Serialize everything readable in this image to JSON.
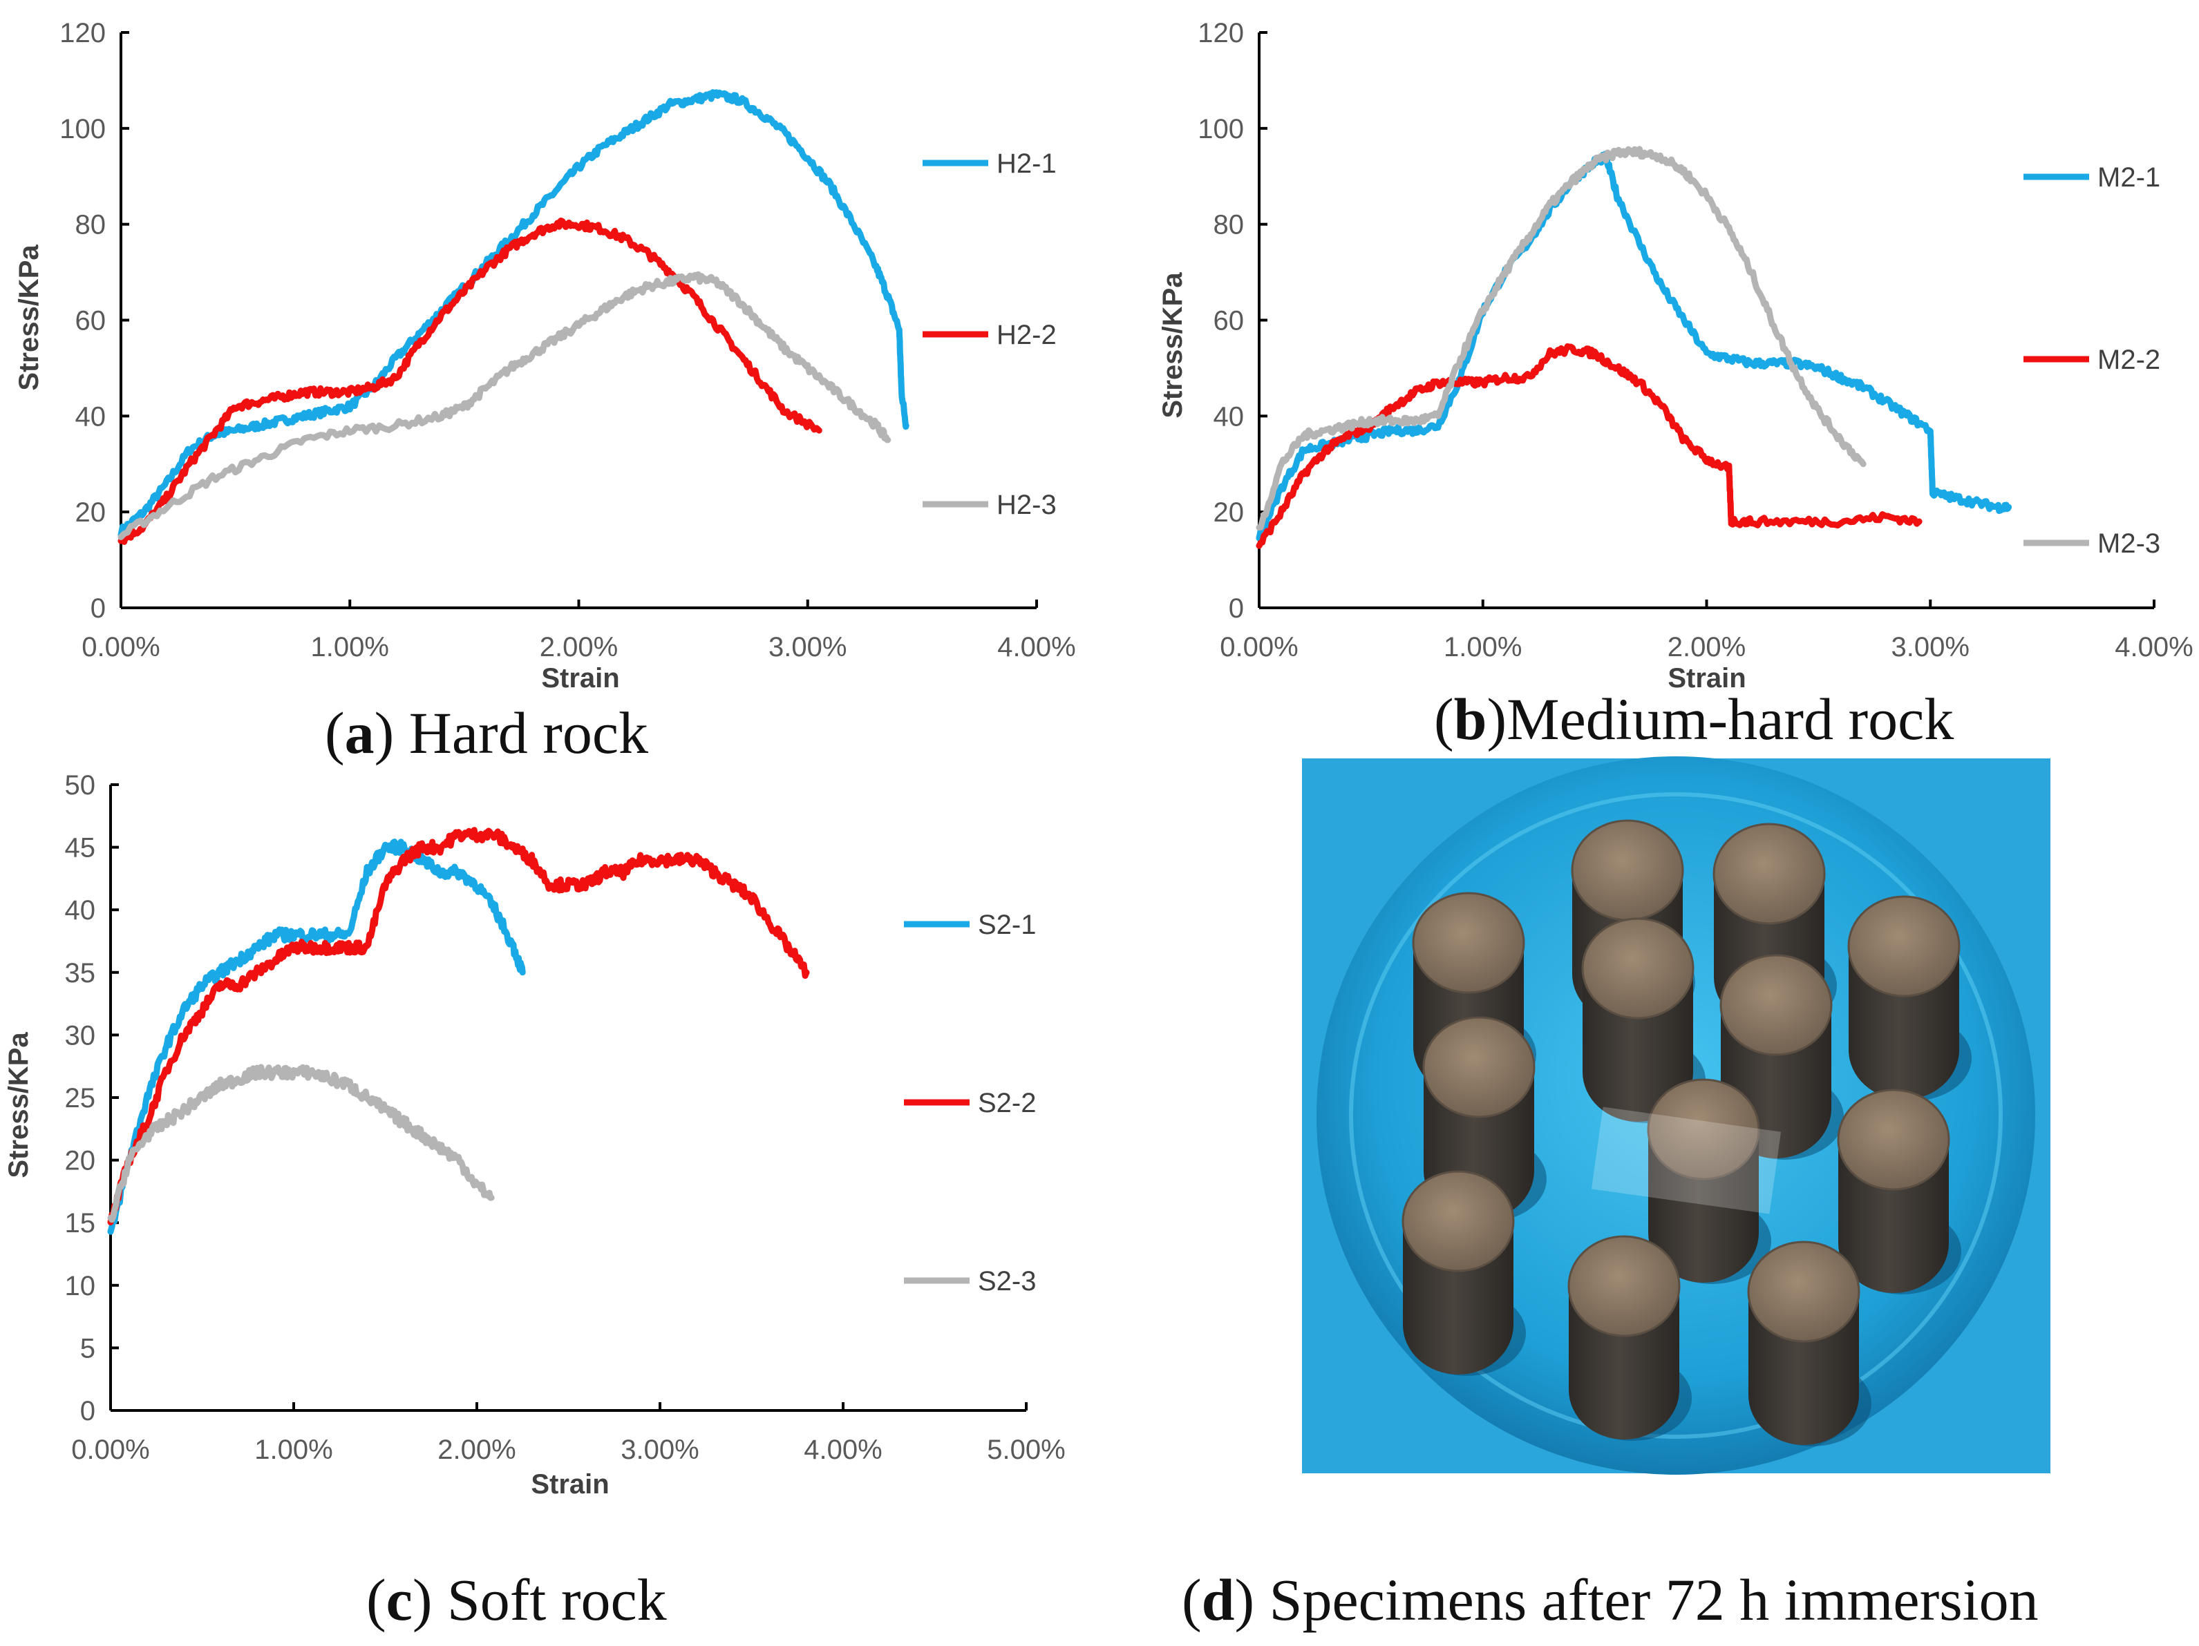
{
  "chart_data": [
    {
      "panel": "a",
      "type": "line",
      "caption_letter": "a",
      "caption_text": ") Hard rock",
      "caption_open": "(",
      "xlabel": "Strain",
      "ylabel": "Stress/KPa",
      "xlim": [
        0,
        0.04
      ],
      "ylim": [
        0,
        120
      ],
      "xticks": [
        0,
        0.01,
        0.02,
        0.03,
        0.04
      ],
      "xtick_labels": [
        "0.00%",
        "1.00%",
        "2.00%",
        "3.00%",
        "4.00%"
      ],
      "yticks": [
        0,
        20,
        40,
        60,
        80,
        100,
        120
      ],
      "ytick_labels": [
        "0",
        "20",
        "40",
        "60",
        "80",
        "100",
        "120"
      ],
      "legend_position": "right",
      "series": [
        {
          "name": "H2-1",
          "color": "#19a9e6",
          "x": [
            0,
            0.001,
            0.002,
            0.003,
            0.004,
            0.005,
            0.006,
            0.007,
            0.008,
            0.009,
            0.01,
            0.011,
            0.012,
            0.013,
            0.014,
            0.015,
            0.016,
            0.017,
            0.018,
            0.019,
            0.02,
            0.021,
            0.022,
            0.023,
            0.024,
            0.025,
            0.026,
            0.027,
            0.028,
            0.029,
            0.03,
            0.031,
            0.032,
            0.033,
            0.0335,
            0.034,
            0.0341,
            0.0343
          ],
          "y": [
            16,
            20,
            26,
            33,
            36,
            37,
            38,
            39,
            40,
            41,
            42,
            46,
            52,
            57,
            62,
            67,
            72,
            77,
            82,
            87,
            92,
            96,
            99,
            102,
            105,
            106,
            107,
            106,
            103,
            99,
            94,
            88,
            80,
            71,
            65,
            58,
            45,
            38
          ]
        },
        {
          "name": "H2-2",
          "color": "#f01010",
          "x": [
            0,
            0.001,
            0.002,
            0.003,
            0.004,
            0.005,
            0.006,
            0.007,
            0.008,
            0.009,
            0.01,
            0.011,
            0.012,
            0.013,
            0.014,
            0.015,
            0.016,
            0.017,
            0.018,
            0.019,
            0.02,
            0.021,
            0.022,
            0.023,
            0.024,
            0.025,
            0.026,
            0.027,
            0.028,
            0.029,
            0.0305
          ],
          "y": [
            14,
            17,
            23,
            30,
            36,
            42,
            43,
            44,
            45,
            45,
            45,
            46,
            48,
            55,
            61,
            66,
            71,
            75,
            78,
            80,
            80,
            79,
            77,
            74,
            70,
            65,
            59,
            53,
            47,
            41,
            37
          ]
        },
        {
          "name": "H2-3",
          "color": "#b4b4b4",
          "x": [
            0,
            0.002,
            0.004,
            0.006,
            0.008,
            0.01,
            0.012,
            0.014,
            0.015,
            0.016,
            0.017,
            0.018,
            0.019,
            0.02,
            0.021,
            0.022,
            0.023,
            0.024,
            0.025,
            0.026,
            0.027,
            0.028,
            0.029,
            0.03,
            0.031,
            0.032,
            0.033,
            0.0335
          ],
          "y": [
            15,
            21,
            27,
            31,
            35,
            37,
            38,
            40,
            42,
            46,
            50,
            53,
            56,
            59,
            62,
            65,
            67,
            68,
            69,
            68,
            64,
            59,
            54,
            50,
            46,
            42,
            38,
            35
          ]
        }
      ]
    },
    {
      "panel": "b",
      "type": "line",
      "caption_letter": "b",
      "caption_text": ")Medium-hard rock",
      "caption_open": "(",
      "xlabel": "Strain",
      "ylabel": "Stress/KPa",
      "xlim": [
        0,
        0.04
      ],
      "ylim": [
        0,
        120
      ],
      "xticks": [
        0,
        0.01,
        0.02,
        0.03,
        0.04
      ],
      "xtick_labels": [
        "0.00%",
        "1.00%",
        "2.00%",
        "3.00%",
        "4.00%"
      ],
      "yticks": [
        0,
        20,
        40,
        60,
        80,
        100,
        120
      ],
      "ytick_labels": [
        "0",
        "20",
        "40",
        "60",
        "80",
        "100",
        "120"
      ],
      "legend_position": "right",
      "series": [
        {
          "name": "M2-1",
          "color": "#19a9e6",
          "x": [
            0,
            0.001,
            0.002,
            0.003,
            0.004,
            0.005,
            0.006,
            0.007,
            0.008,
            0.009,
            0.01,
            0.011,
            0.012,
            0.013,
            0.014,
            0.015,
            0.0155,
            0.016,
            0.017,
            0.018,
            0.019,
            0.02,
            0.021,
            0.022,
            0.023,
            0.024,
            0.025,
            0.026,
            0.027,
            0.028,
            0.029,
            0.03,
            0.0301,
            0.031,
            0.032,
            0.033,
            0.0335
          ],
          "y": [
            15,
            25,
            33,
            34,
            35,
            36,
            37,
            37,
            38,
            48,
            62,
            70,
            76,
            83,
            89,
            93,
            94,
            86,
            76,
            67,
            60,
            53,
            52,
            51,
            51,
            51,
            50,
            48,
            46,
            43,
            40,
            37,
            24,
            23,
            22,
            21,
            21
          ]
        },
        {
          "name": "M2-2",
          "color": "#f01010",
          "x": [
            0,
            0.001,
            0.002,
            0.003,
            0.004,
            0.005,
            0.006,
            0.007,
            0.008,
            0.009,
            0.01,
            0.011,
            0.012,
            0.013,
            0.014,
            0.015,
            0.016,
            0.017,
            0.018,
            0.019,
            0.02,
            0.021,
            0.0211,
            0.022,
            0.024,
            0.026,
            0.028,
            0.0295
          ],
          "y": [
            13,
            20,
            28,
            33,
            36,
            38,
            42,
            45,
            47,
            47,
            47,
            48,
            48,
            53,
            54,
            53,
            50,
            47,
            42,
            35,
            31,
            29,
            18,
            18,
            18,
            18,
            19,
            18
          ]
        },
        {
          "name": "M2-3",
          "color": "#b4b4b4",
          "x": [
            0,
            0.001,
            0.002,
            0.003,
            0.004,
            0.005,
            0.006,
            0.007,
            0.008,
            0.009,
            0.01,
            0.011,
            0.012,
            0.013,
            0.014,
            0.015,
            0.016,
            0.017,
            0.018,
            0.019,
            0.02,
            0.021,
            0.022,
            0.023,
            0.024,
            0.025,
            0.026,
            0.027
          ],
          "y": [
            16,
            30,
            36,
            37,
            38,
            39,
            39,
            39,
            40,
            52,
            62,
            70,
            77,
            84,
            89,
            93,
            95,
            95,
            94,
            91,
            86,
            79,
            70,
            59,
            49,
            41,
            35,
            30
          ]
        }
      ]
    },
    {
      "panel": "c",
      "type": "line",
      "caption_letter": "c",
      "caption_text": ") Soft rock",
      "caption_open": "(",
      "xlabel": "Strain",
      "ylabel": "Stress/KPa",
      "xlim": [
        0,
        0.05
      ],
      "ylim": [
        0,
        50
      ],
      "xticks": [
        0,
        0.01,
        0.02,
        0.03,
        0.04,
        0.05
      ],
      "xtick_labels": [
        "0.00%",
        "1.00%",
        "2.00%",
        "3.00%",
        "4.00%",
        "5.00%"
      ],
      "yticks": [
        0,
        5,
        10,
        15,
        20,
        25,
        30,
        35,
        40,
        45,
        50
      ],
      "ytick_labels": [
        "0",
        "5",
        "10",
        "15",
        "20",
        "25",
        "30",
        "35",
        "40",
        "45",
        "50"
      ],
      "legend_position": "right",
      "series": [
        {
          "name": "S2-1",
          "color": "#19a9e6",
          "x": [
            0,
            0.001,
            0.002,
            0.003,
            0.004,
            0.005,
            0.006,
            0.007,
            0.008,
            0.009,
            0.01,
            0.011,
            0.012,
            0.013,
            0.014,
            0.015,
            0.016,
            0.017,
            0.018,
            0.019,
            0.02,
            0.021,
            0.022,
            0.0225
          ],
          "y": [
            14,
            20,
            25,
            29,
            32,
            34,
            35,
            36,
            37,
            38,
            38,
            38,
            38,
            38,
            43,
            45,
            45,
            44,
            43,
            43,
            42,
            40,
            37,
            35
          ]
        },
        {
          "name": "S2-2",
          "color": "#f01010",
          "x": [
            0,
            0.001,
            0.002,
            0.003,
            0.004,
            0.005,
            0.006,
            0.007,
            0.008,
            0.009,
            0.01,
            0.011,
            0.012,
            0.013,
            0.014,
            0.015,
            0.016,
            0.017,
            0.018,
            0.019,
            0.02,
            0.021,
            0.022,
            0.023,
            0.024,
            0.025,
            0.026,
            0.027,
            0.028,
            0.029,
            0.03,
            0.031,
            0.032,
            0.033,
            0.034,
            0.035,
            0.036,
            0.037,
            0.038
          ],
          "y": [
            15,
            20,
            23,
            27,
            30,
            32,
            34,
            34,
            35,
            36,
            37,
            37,
            37,
            37,
            37,
            42,
            44,
            45,
            45,
            46,
            46,
            46,
            45,
            44,
            42,
            42,
            42,
            43,
            43,
            44,
            44,
            44,
            44,
            43,
            42,
            41,
            39,
            37,
            35
          ]
        },
        {
          "name": "S2-3",
          "color": "#b4b4b4",
          "x": [
            0,
            0.001,
            0.002,
            0.003,
            0.004,
            0.005,
            0.006,
            0.007,
            0.008,
            0.009,
            0.01,
            0.011,
            0.012,
            0.013,
            0.014,
            0.015,
            0.016,
            0.017,
            0.018,
            0.019,
            0.02,
            0.0208
          ],
          "y": [
            15,
            20,
            22,
            23,
            24,
            25,
            26,
            26.5,
            27,
            27,
            27,
            27,
            26.5,
            26,
            25,
            24,
            23,
            22,
            21,
            20,
            18,
            17
          ]
        }
      ]
    }
  ],
  "panel_d": {
    "caption_open": "(",
    "caption_letter": "d",
    "caption_text": ") Specimens after 72 h immersion",
    "photo_description_icon": "specimens-photo-icon",
    "colors": {
      "water": "#1f9fd4",
      "basin": "#37b6e8",
      "specimen_top": "#8d7a66",
      "specimen_side": "#3b3732"
    }
  }
}
